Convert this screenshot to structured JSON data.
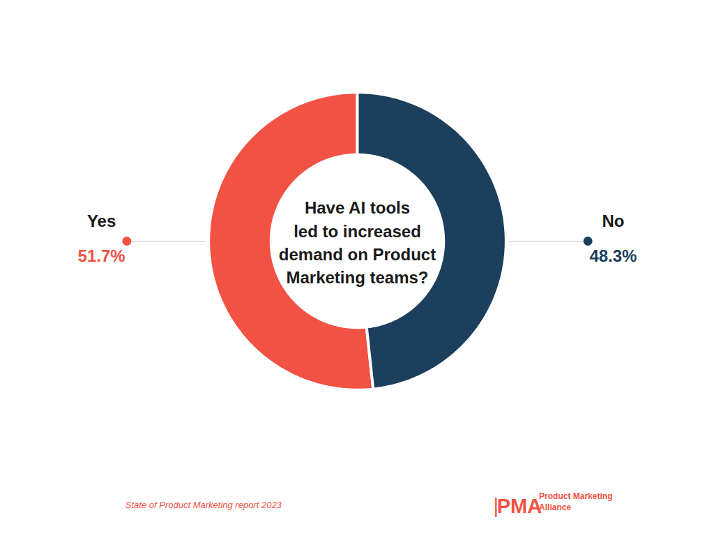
{
  "chart_data": {
    "type": "donut",
    "title": "Have AI tools\nled to increased\ndemand on Product\nMarketing teams?",
    "categories": [
      "Yes",
      "No"
    ],
    "values": [
      51.7,
      48.3
    ],
    "value_labels": [
      "51.7%",
      "48.3%"
    ],
    "colors": [
      "#f25244",
      "#1b3f5c"
    ],
    "data_labels": true,
    "annotations": [
      {
        "text": "State of Product Marketing report 2023",
        "color": "#f25244"
      },
      {
        "text": "|",
        "color": "#f25244"
      },
      {
        "text": "PMA",
        "color": "#f25244"
      },
      {
        "text": "Product Marketing",
        "color": "#f25244"
      },
      {
        "text": "Alliance",
        "color": "#f25244"
      }
    ]
  }
}
